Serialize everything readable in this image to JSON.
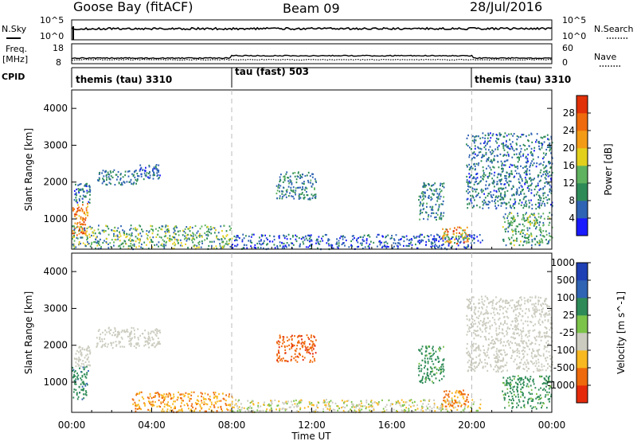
{
  "header": {
    "station": "Goose Bay (fitACF)",
    "beam": "Beam 09",
    "date": "28/Jul/2016"
  },
  "noise_panel": {
    "left_label": "N.Sky",
    "right_label": "N.Search",
    "ticks": [
      "10^5",
      "10^0"
    ],
    "right_ticks": [
      "10^5",
      "10^0"
    ]
  },
  "freq_panel": {
    "left_label_top": "Freq.",
    "left_label_bottom": "[MHz]",
    "right_label": "Nave",
    "left_ticks": [
      "18",
      "8"
    ],
    "right_ticks": [
      "60",
      "0"
    ]
  },
  "cpid": {
    "label": "CPID",
    "segments": [
      {
        "name": "themis (tau) 3310",
        "start_h": 0,
        "end_h": 8
      },
      {
        "name": "tau (fast) 503",
        "start_h": 8,
        "end_h": 20
      },
      {
        "name": "themis (tau) 3310",
        "start_h": 20,
        "end_h": 24
      }
    ]
  },
  "colors": {
    "power": [
      "#1a1aff",
      "#2f63b4",
      "#2e8b57",
      "#5fb25f",
      "#e3d01c",
      "#f49b16",
      "#ef6a0c",
      "#e23008"
    ],
    "velocity": [
      "#e52a0c",
      "#ef6a0c",
      "#f8b820",
      "#cbcbbf",
      "#7cc34a",
      "#2e8b57",
      "#2f63b4",
      "#1f3fb4"
    ]
  },
  "chart_data": [
    {
      "type": "heatmap",
      "quantity": "Power",
      "xlabel": "Time UT",
      "ylabel": "Slant Range [km]",
      "x_ticks": [
        "00:00",
        "04:00",
        "08:00",
        "12:00",
        "16:00",
        "20:00",
        "00:00"
      ],
      "x_range_hours": [
        0,
        24
      ],
      "y_ticks": [
        1000,
        2000,
        3000,
        4000
      ],
      "ylim": [
        180,
        4500
      ],
      "colorbar_label": "Power [dB]",
      "colorbar_ticks": [
        4,
        8,
        12,
        16,
        20,
        24,
        28
      ],
      "colorbar_range": [
        0,
        32
      ],
      "scatter_regions": [
        {
          "t": [
            0.0,
            0.8
          ],
          "r": [
            550,
            1450
          ],
          "v": [
            18,
            30
          ]
        },
        {
          "t": [
            0.1,
            0.9
          ],
          "r": [
            1450,
            2000
          ],
          "v": [
            3,
            12
          ]
        },
        {
          "t": [
            1.2,
            3.3
          ],
          "r": [
            1950,
            2350
          ],
          "v": [
            4,
            12
          ]
        },
        {
          "t": [
            3.3,
            4.4
          ],
          "r": [
            2100,
            2500
          ],
          "v": [
            3,
            9
          ]
        },
        {
          "t": [
            0.0,
            8.0
          ],
          "r": [
            180,
            850
          ],
          "v": [
            4,
            20
          ]
        },
        {
          "t": [
            8.0,
            20.5
          ],
          "r": [
            180,
            600
          ],
          "v": [
            1,
            10
          ]
        },
        {
          "t": [
            10.2,
            12.2
          ],
          "r": [
            1550,
            2300
          ],
          "v": [
            4,
            14
          ]
        },
        {
          "t": [
            18.5,
            19.8
          ],
          "r": [
            350,
            800
          ],
          "v": [
            14,
            30
          ]
        },
        {
          "t": [
            17.3,
            18.6
          ],
          "r": [
            1000,
            2000
          ],
          "v": [
            4,
            14
          ]
        },
        {
          "t": [
            19.7,
            24.0
          ],
          "r": [
            1300,
            3350
          ],
          "v": [
            3,
            12
          ]
        },
        {
          "t": [
            21.5,
            24.0
          ],
          "r": [
            300,
            1200
          ],
          "v": [
            6,
            18
          ]
        }
      ]
    },
    {
      "type": "heatmap",
      "quantity": "Velocity",
      "xlabel": "Time UT",
      "ylabel": "Slant Range [km]",
      "x_ticks": [
        "00:00",
        "04:00",
        "08:00",
        "12:00",
        "16:00",
        "20:00",
        "00:00"
      ],
      "x_range_hours": [
        0,
        24
      ],
      "y_ticks": [
        1000,
        2000,
        3000,
        4000
      ],
      "ylim": [
        180,
        4500
      ],
      "colorbar_label": "Velocity [m s^-1]",
      "colorbar_ticks": [
        -1000,
        -500,
        -100,
        -25,
        25,
        100,
        500,
        1000
      ],
      "colorbar_tick_labels": [
        "-1000",
        "-500",
        "-100",
        "-25",
        "25",
        "100",
        "500",
        "1000"
      ],
      "scatter_regions": [
        {
          "t": [
            0.0,
            0.8
          ],
          "r": [
            550,
            1450
          ],
          "v": [
            100,
            600
          ]
        },
        {
          "t": [
            0.1,
            0.9
          ],
          "r": [
            1450,
            2000
          ],
          "v": [
            -20,
            20
          ]
        },
        {
          "t": [
            1.2,
            4.4
          ],
          "r": [
            1950,
            2500
          ],
          "v": [
            -20,
            20
          ]
        },
        {
          "t": [
            3.0,
            8.0
          ],
          "r": [
            180,
            750
          ],
          "v": [
            -150,
            -30
          ]
        },
        {
          "t": [
            8.0,
            20.5
          ],
          "r": [
            180,
            550
          ],
          "v": [
            -60,
            60
          ]
        },
        {
          "t": [
            10.2,
            12.2
          ],
          "r": [
            1550,
            2300
          ],
          "v": [
            -600,
            -120
          ]
        },
        {
          "t": [
            18.5,
            19.8
          ],
          "r": [
            350,
            800
          ],
          "v": [
            -200,
            -60
          ]
        },
        {
          "t": [
            17.3,
            18.6
          ],
          "r": [
            1000,
            2000
          ],
          "v": [
            60,
            400
          ]
        },
        {
          "t": [
            19.7,
            24.0
          ],
          "r": [
            1300,
            3350
          ],
          "v": [
            -20,
            20
          ]
        },
        {
          "t": [
            21.5,
            24.0
          ],
          "r": [
            300,
            1200
          ],
          "v": [
            60,
            300
          ]
        }
      ]
    }
  ]
}
